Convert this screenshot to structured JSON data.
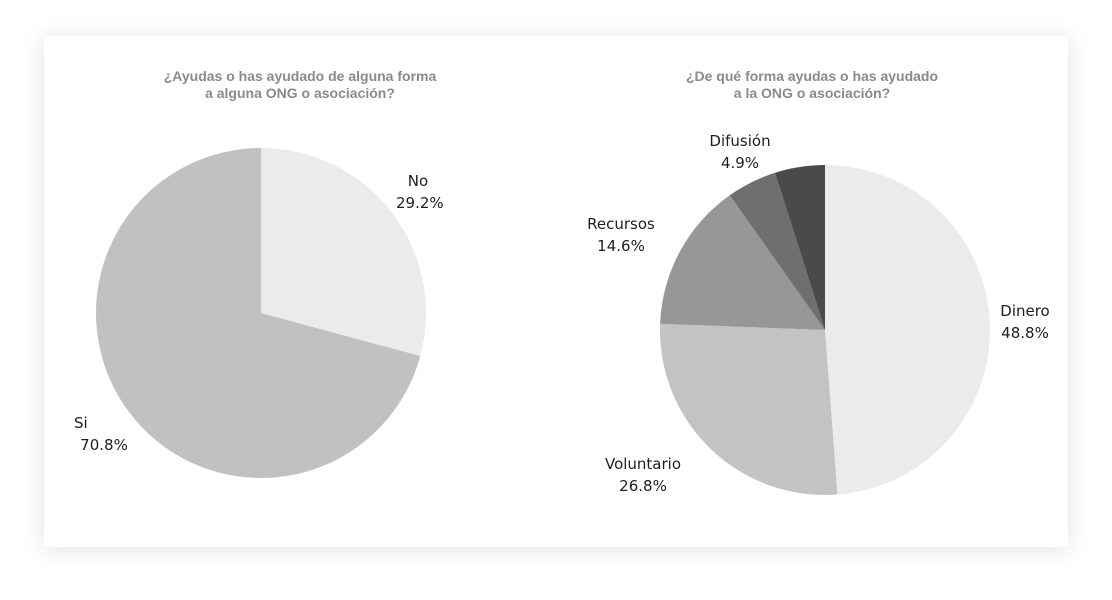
{
  "chart_data": [
    {
      "type": "pie",
      "title_lines": [
        "¿Ayudas o has ayudado de alguna forma",
        "a alguna ONG o asociación?"
      ],
      "start": "12 o'clock",
      "direction": "clockwise",
      "slices": [
        {
          "label": "No",
          "value": 29.2,
          "display": "29.2%",
          "color": "#ebebeb"
        },
        {
          "label": "Si",
          "value": 70.8,
          "display": "70.8%",
          "color": "#c1c1c1"
        }
      ]
    },
    {
      "type": "pie",
      "title_lines": [
        "¿De qué forma ayudas o has ayudado",
        "a la ONG o asociación?"
      ],
      "start": "12 o'clock",
      "direction": "clockwise",
      "slices": [
        {
          "label": "Dinero",
          "value": 48.8,
          "display": "48.8%",
          "color": "#ebebeb"
        },
        {
          "label": "Voluntario",
          "value": 26.8,
          "display": "26.8%",
          "color": "#c3c3c3"
        },
        {
          "label": "Recursos",
          "value": 14.6,
          "display": "14.6%",
          "color": "#979797"
        },
        {
          "label": "Difusión",
          "value": 4.9,
          "display": "4.9%",
          "color": "#6f6f6f"
        },
        {
          "label": "",
          "value": 4.9,
          "display": "",
          "color": "#4a4a4a"
        }
      ]
    }
  ]
}
